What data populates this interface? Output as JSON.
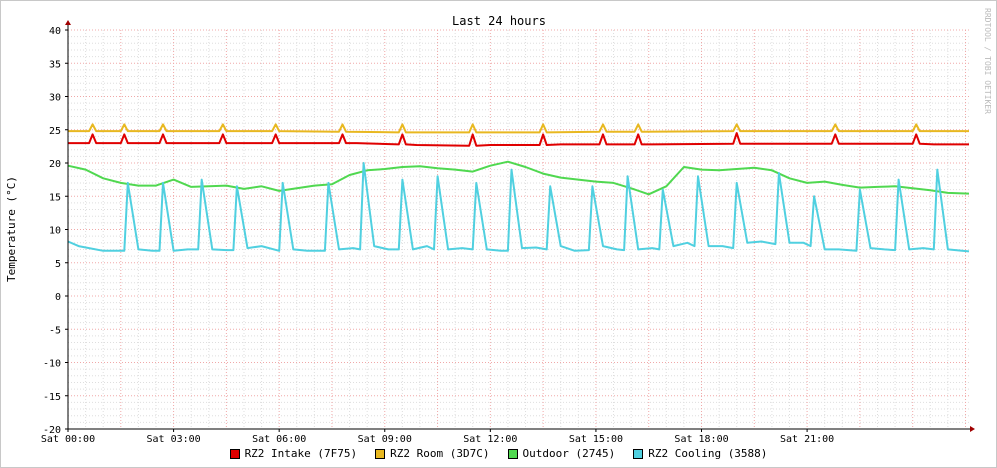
{
  "chart_data": {
    "type": "line",
    "title": "Last 24 hours",
    "ylabel": "Temperature (°C)",
    "watermark": "RRDTOOL / TOBI OETIKER",
    "ylim": [
      -20,
      40
    ],
    "y_ticks": [
      40,
      35,
      30,
      25,
      20,
      15,
      10,
      5,
      0,
      -5,
      -10,
      -15,
      -20
    ],
    "x_range_hours": [
      0,
      25.6
    ],
    "x_ticks": [
      {
        "hour": 0,
        "label": "Sat 00:00"
      },
      {
        "hour": 3,
        "label": "Sat 03:00"
      },
      {
        "hour": 6,
        "label": "Sat 06:00"
      },
      {
        "hour": 9,
        "label": "Sat 09:00"
      },
      {
        "hour": 12,
        "label": "Sat 12:00"
      },
      {
        "hour": 15,
        "label": "Sat 15:00"
      },
      {
        "hour": 18,
        "label": "Sat 18:00"
      },
      {
        "hour": 21,
        "label": "Sat 21:00"
      }
    ],
    "grid": true,
    "legend_position": "bottom",
    "series": [
      {
        "name": "RZ2 Intake (7F75)",
        "color": "#e00000",
        "x": [
          0,
          0.6,
          0.7,
          0.8,
          1.2,
          1.5,
          1.6,
          1.7,
          2.1,
          2.6,
          2.7,
          2.8,
          3.2,
          4.3,
          4.4,
          4.5,
          4.8,
          5.8,
          5.9,
          6.0,
          6.3,
          7.7,
          7.8,
          7.9,
          8.2,
          9.4,
          9.5,
          9.6,
          9.9,
          11.4,
          11.5,
          11.6,
          12.0,
          13.4,
          13.5,
          13.6,
          14.0,
          15.1,
          15.2,
          15.3,
          15.6,
          16.1,
          16.2,
          16.3,
          16.6,
          18.9,
          19.0,
          19.1,
          19.5,
          21.7,
          21.8,
          21.9,
          22.2,
          24.0,
          24.1,
          24.2,
          24.6,
          25.6
        ],
        "values": [
          23.0,
          23.0,
          24.3,
          23.0,
          23.0,
          23.0,
          24.3,
          23.0,
          23.0,
          23.0,
          24.3,
          23.0,
          23.0,
          23.0,
          24.3,
          23.0,
          23.0,
          23.0,
          24.3,
          23.0,
          23.0,
          23.0,
          24.3,
          23.0,
          23.0,
          22.8,
          24.3,
          22.8,
          22.7,
          22.6,
          24.3,
          22.6,
          22.7,
          22.7,
          24.3,
          22.7,
          22.8,
          22.8,
          24.3,
          22.8,
          22.8,
          22.8,
          24.3,
          22.8,
          22.8,
          22.9,
          24.5,
          22.9,
          22.9,
          22.9,
          24.3,
          22.9,
          22.9,
          22.9,
          24.3,
          22.9,
          22.8,
          22.8
        ]
      },
      {
        "name": "RZ2 Room (3D7C)",
        "color": "#e8b820",
        "x": [
          0,
          0.6,
          0.7,
          0.8,
          1.5,
          1.6,
          1.7,
          2.6,
          2.7,
          2.8,
          4.3,
          4.4,
          4.5,
          5.8,
          5.9,
          6.0,
          7.7,
          7.8,
          7.9,
          9.4,
          9.5,
          9.6,
          11.4,
          11.5,
          11.6,
          13.4,
          13.5,
          13.6,
          15.1,
          15.2,
          15.3,
          16.1,
          16.2,
          16.3,
          18.9,
          19.0,
          19.1,
          21.7,
          21.8,
          21.9,
          24.0,
          24.1,
          24.2,
          25.6
        ],
        "values": [
          24.8,
          24.8,
          25.8,
          24.8,
          24.8,
          25.8,
          24.8,
          24.8,
          25.8,
          24.8,
          24.8,
          25.8,
          24.8,
          24.8,
          25.8,
          24.8,
          24.7,
          25.8,
          24.7,
          24.6,
          25.8,
          24.6,
          24.6,
          25.8,
          24.6,
          24.6,
          25.8,
          24.6,
          24.7,
          25.8,
          24.7,
          24.7,
          25.8,
          24.7,
          24.8,
          25.8,
          24.8,
          24.8,
          25.8,
          24.8,
          24.8,
          25.8,
          24.8,
          24.8
        ]
      },
      {
        "name": "Outdoor (2745)",
        "color": "#50d850",
        "x": [
          0,
          0.5,
          1.0,
          1.5,
          2.0,
          2.5,
          3.0,
          3.5,
          4.0,
          4.5,
          5.0,
          5.5,
          6.0,
          6.5,
          7.0,
          7.5,
          8.0,
          8.5,
          9.0,
          9.5,
          10.0,
          10.5,
          11.0,
          11.5,
          12.0,
          12.5,
          13.0,
          13.5,
          14.0,
          14.5,
          15.0,
          15.5,
          16.0,
          16.5,
          17.0,
          17.5,
          18.0,
          18.5,
          19.0,
          19.5,
          20.0,
          20.5,
          21.0,
          21.5,
          22.0,
          22.5,
          23.0,
          23.5,
          24.0,
          24.5,
          25.0,
          25.6
        ],
        "values": [
          19.6,
          19.0,
          17.7,
          17.0,
          16.6,
          16.6,
          17.5,
          16.4,
          16.5,
          16.6,
          16.1,
          16.5,
          15.8,
          16.2,
          16.6,
          16.8,
          18.2,
          18.9,
          19.1,
          19.4,
          19.5,
          19.2,
          19.0,
          18.7,
          19.6,
          20.2,
          19.4,
          18.4,
          17.8,
          17.5,
          17.2,
          17.0,
          16.2,
          15.3,
          16.5,
          19.4,
          19.0,
          18.9,
          19.1,
          19.3,
          18.9,
          17.7,
          17.0,
          17.2,
          16.7,
          16.3,
          16.4,
          16.5,
          16.2,
          15.9,
          15.5,
          15.4
        ]
      },
      {
        "name": "RZ2 Cooling (3588)",
        "color": "#50d0e0",
        "x": [
          0,
          0.3,
          0.6,
          1.0,
          1.4,
          1.6,
          1.7,
          2.0,
          2.4,
          2.6,
          2.7,
          3.0,
          3.4,
          3.7,
          3.8,
          4.1,
          4.5,
          4.7,
          4.8,
          5.1,
          5.5,
          6.0,
          6.1,
          6.4,
          6.8,
          7.3,
          7.4,
          7.7,
          8.1,
          8.3,
          8.4,
          8.7,
          9.1,
          9.4,
          9.5,
          9.8,
          10.2,
          10.4,
          10.5,
          10.8,
          11.2,
          11.5,
          11.6,
          11.9,
          12.3,
          12.5,
          12.6,
          12.9,
          13.3,
          13.6,
          13.7,
          14.0,
          14.4,
          14.8,
          14.9,
          15.2,
          15.6,
          15.8,
          15.9,
          16.2,
          16.6,
          16.8,
          16.9,
          17.2,
          17.6,
          17.8,
          17.9,
          18.2,
          18.6,
          18.9,
          19.0,
          19.3,
          19.7,
          20.1,
          20.2,
          20.5,
          20.9,
          21.1,
          21.2,
          21.5,
          21.9,
          22.4,
          22.5,
          22.8,
          23.2,
          23.5,
          23.6,
          23.9,
          24.3,
          24.6,
          24.7,
          25.0,
          25.4,
          25.6
        ],
        "values": [
          8.2,
          7.5,
          7.2,
          6.8,
          6.8,
          6.8,
          17.0,
          7.0,
          6.8,
          6.8,
          17.0,
          6.8,
          7.0,
          7.0,
          17.5,
          7.0,
          6.9,
          6.9,
          16.5,
          7.2,
          7.5,
          6.8,
          17.0,
          7.0,
          6.8,
          6.8,
          17.0,
          7.0,
          7.2,
          7.0,
          20.0,
          7.5,
          7.0,
          7.0,
          17.5,
          7.0,
          7.5,
          7.0,
          18.0,
          7.0,
          7.2,
          7.0,
          17.0,
          7.0,
          6.8,
          6.8,
          19.0,
          7.2,
          7.3,
          7.0,
          16.5,
          7.5,
          6.8,
          6.9,
          16.5,
          7.5,
          7.0,
          6.9,
          18.0,
          7.0,
          7.2,
          7.0,
          16.0,
          7.5,
          8.0,
          7.5,
          18.0,
          7.5,
          7.5,
          7.2,
          17.0,
          8.0,
          8.2,
          7.8,
          18.5,
          8.0,
          8.0,
          7.5,
          15.0,
          7.0,
          7.0,
          6.8,
          16.0,
          7.2,
          7.0,
          6.9,
          17.5,
          7.0,
          7.2,
          7.0,
          19.0,
          7.0,
          6.8,
          6.7
        ]
      }
    ]
  }
}
